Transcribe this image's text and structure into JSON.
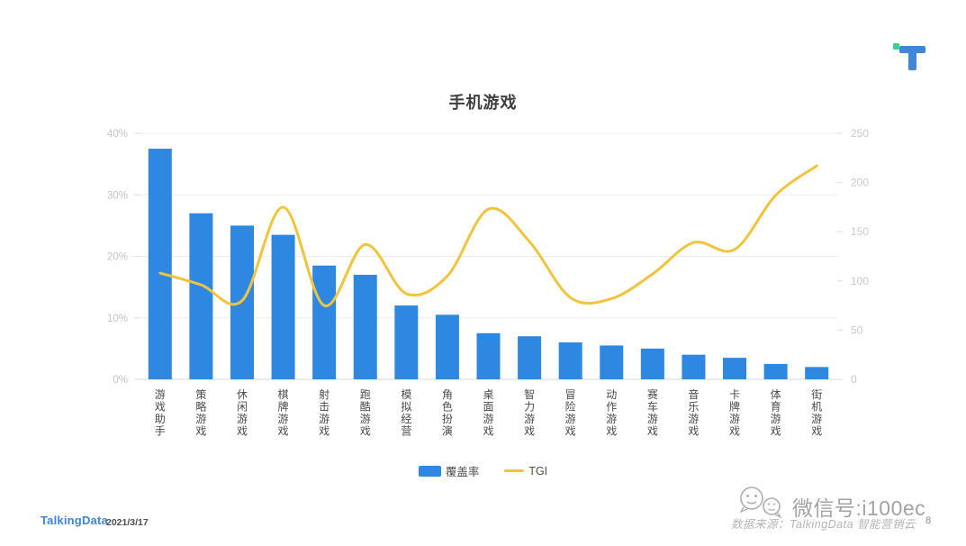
{
  "page": {
    "footer": {
      "brand": "TalkingData",
      "date": "2021/3/17",
      "source": "数据来源：TalkingData 智能营销云",
      "page_number": "8",
      "watermark": "微信号:i100ec"
    },
    "logo_colors": {
      "blue": "#4186db",
      "green": "#3dce90"
    }
  },
  "chart_data": {
    "type": "bar+line combo",
    "title": "手机游戏",
    "categories": [
      "游戏助手",
      "策略游戏",
      "休闲游戏",
      "棋牌游戏",
      "射击游戏",
      "跑酷游戏",
      "模拟经营",
      "角色扮演",
      "桌面游戏",
      "智力游戏",
      "冒险游戏",
      "动作游戏",
      "赛车游戏",
      "音乐游戏",
      "卡牌游戏",
      "体育游戏",
      "街机游戏"
    ],
    "series": [
      {
        "name": "覆盖率",
        "type": "bar",
        "axis": "left",
        "unit": "%",
        "color": "#2e87e0",
        "values": [
          37.5,
          27,
          25,
          23.5,
          18.5,
          17,
          12,
          10.5,
          7.5,
          7,
          6,
          5.5,
          5,
          4,
          3.5,
          2.5,
          2
        ]
      },
      {
        "name": "TGI",
        "type": "line",
        "axis": "right",
        "color": "#f2c33c",
        "values": [
          108,
          96,
          80,
          175,
          75,
          137,
          87,
          105,
          173,
          140,
          83,
          82,
          107,
          139,
          132,
          187,
          217
        ]
      }
    ],
    "left_axis": {
      "min": 0,
      "max": 40,
      "ticks": [
        "0%",
        "10%",
        "20%",
        "30%",
        "40%"
      ],
      "tick_values": [
        0,
        10,
        20,
        30,
        40
      ]
    },
    "right_axis": {
      "min": 0,
      "max": 250,
      "ticks": [
        "0",
        "50",
        "100",
        "150",
        "200",
        "250"
      ],
      "tick_values": [
        0,
        50,
        100,
        150,
        200,
        250
      ]
    },
    "legend": [
      "覆盖率",
      "TGI"
    ],
    "legend_position": "bottom",
    "grid": true,
    "smooth_line": true
  }
}
